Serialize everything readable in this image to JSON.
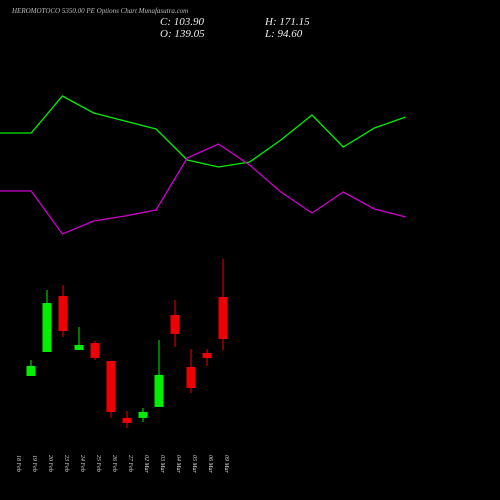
{
  "chart_data": [
    {
      "type": "candlestick",
      "title": "HEROMOTOCO 5350.00 PE Options Chart Munafasutra.com",
      "ohlc_labels": {
        "close": "C: 103.90",
        "high": "H: 171.15",
        "open": "O: 139.05",
        "low": "L: 94.60"
      },
      "categories": [
        "18 Feb",
        "19 Feb",
        "20 Feb",
        "23 Feb",
        "24 Feb",
        "25 Feb",
        "26 Feb",
        "27 Feb",
        "02 Mar",
        "03 Mar",
        "04 Mar",
        "05 Mar",
        "06 Mar",
        "09 Mar"
      ],
      "open": [
        null,
        72.9,
        93.0,
        139.9,
        94.7,
        100.5,
        85.5,
        37.8,
        37.8,
        47.0,
        124.0,
        80.5,
        92.2,
        139.05
      ],
      "high": [
        null,
        86.3,
        144.9,
        149.1,
        113.9,
        102.2,
        85.5,
        43.6,
        46.1,
        103.0,
        136.5,
        95.5,
        95.5,
        171.15
      ],
      "low": [
        null,
        72.9,
        93.0,
        105.6,
        94.7,
        86.3,
        37.8,
        29.4,
        34.4,
        47.0,
        97.2,
        58.7,
        81.3,
        94.6
      ],
      "close": [
        null,
        81.3,
        134.0,
        110.6,
        98.9,
        88.0,
        42.8,
        33.6,
        42.8,
        73.8,
        108.1,
        62.9,
        88.0,
        103.9
      ],
      "up_color": "#00ee00",
      "down_color": "#ee0000",
      "ylim": [
        27.7,
        178.4
      ]
    },
    {
      "type": "line",
      "series": [
        {
          "color": "#00ee00",
          "values": [
            167,
            167,
            204,
            187,
            179,
            171,
            140,
            133,
            138,
            160,
            185,
            153,
            172,
            183
          ]
        },
        {
          "color": "#cc00cc",
          "values": [
            109,
            109,
            66,
            79,
            84,
            90,
            142,
            156,
            135,
            108,
            87,
            108,
            91,
            83
          ]
        }
      ],
      "ylim": [
        0,
        300
      ]
    }
  ]
}
